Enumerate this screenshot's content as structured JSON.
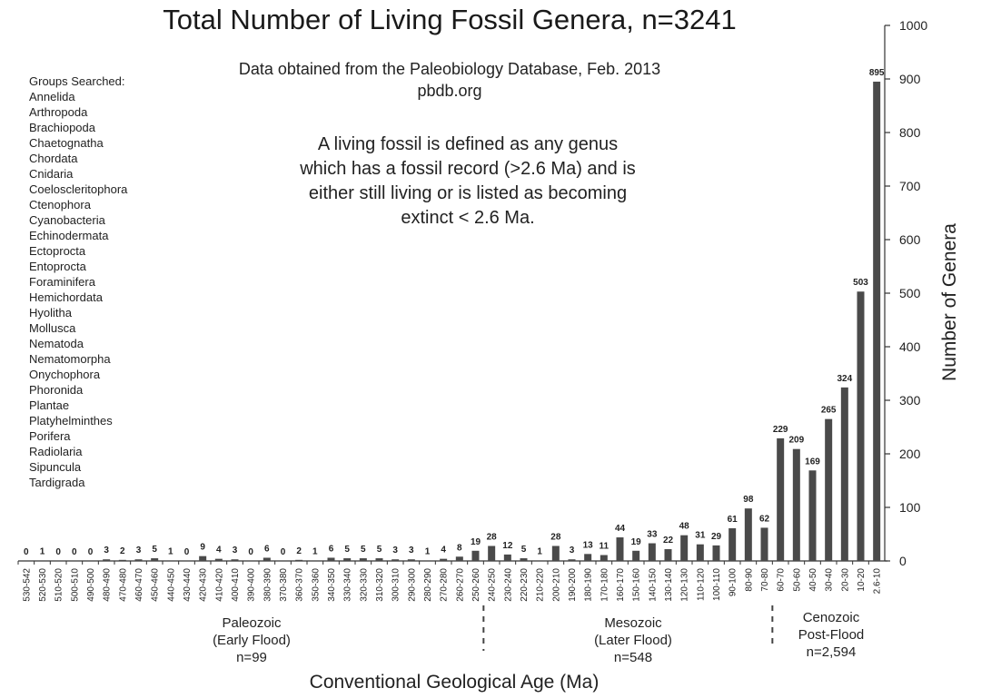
{
  "title": "Total Number of Living Fossil Genera, n=3241",
  "subtitle_lines": [
    "Data obtained from the Paleobiology Database, Feb. 2013",
    "pbdb.org"
  ],
  "definition_lines": [
    "A living fossil is defined as any genus",
    "which has a fossil record (>2.6 Ma) and is",
    "either still living or is listed as becoming",
    "extinct < 2.6 Ma."
  ],
  "groups": {
    "heading": "Groups Searched:",
    "items": [
      "Annelida",
      "Arthropoda",
      "Brachiopoda",
      "Chaetognatha",
      "Chordata",
      "Cnidaria",
      "Coeloscleritophora",
      "Ctenophora",
      "Cyanobacteria",
      "Echinodermata",
      "Ectoprocta",
      "Entoprocta",
      "Foraminifera",
      "Hemichordata",
      "Hyolitha",
      "Mollusca",
      "Nematoda",
      "Nematomorpha",
      "Onychophora",
      "Phoronida",
      "Plantae",
      "Platyhelminthes",
      "Porifera",
      "Radiolaria",
      "Sipuncula",
      "Tardigrada"
    ]
  },
  "eras": [
    {
      "lines": [
        "Paleozoic",
        "(Early Flood)",
        "n=99"
      ]
    },
    {
      "lines": [
        "Mesozoic",
        "(Later Flood)",
        "n=548"
      ]
    },
    {
      "lines": [
        "Cenozoic",
        "Post-Flood",
        "n=2,594"
      ]
    }
  ],
  "chart_data": {
    "type": "bar",
    "title": "Total Number of Living Fossil Genera, n=3241",
    "xlabel": "Conventional Geological Age (Ma)",
    "ylabel": "Number of Genera",
    "ylim": [
      0,
      1000
    ],
    "yticks": [
      0,
      100,
      200,
      300,
      400,
      500,
      600,
      700,
      800,
      900,
      "1000"
    ],
    "y_axis_side": "right",
    "grid": false,
    "bar_color": "#4a4a4a",
    "categories": [
      "530-542",
      "520-530",
      "510-520",
      "500-510",
      "490-500",
      "480-490",
      "470-480",
      "460-470",
      "450-460",
      "440-450",
      "430-440",
      "420-430",
      "410-420",
      "400-410",
      "390-400",
      "380-390",
      "370-380",
      "360-370",
      "350-360",
      "340-350",
      "330-340",
      "320-330",
      "310-320",
      "300-310",
      "290-300",
      "280-290",
      "270-280",
      "260-270",
      "250-260",
      "240-250",
      "230-240",
      "220-230",
      "210-220",
      "200-210",
      "190-200",
      "180-190",
      "170-180",
      "160-170",
      "150-160",
      "140-150",
      "130-140",
      "120-130",
      "110-120",
      "100-110",
      "90-100",
      "80-90",
      "70-80",
      "60-70",
      "50-60",
      "40-50",
      "30-40",
      "20-30",
      "10-20",
      "2.6-10"
    ],
    "values": [
      0,
      1,
      0,
      0,
      0,
      3,
      2,
      3,
      5,
      1,
      0,
      9,
      4,
      3,
      0,
      6,
      0,
      2,
      1,
      6,
      5,
      5,
      5,
      3,
      3,
      1,
      4,
      8,
      19,
      28,
      12,
      5,
      1,
      28,
      3,
      13,
      11,
      44,
      19,
      33,
      22,
      48,
      31,
      29,
      61,
      98,
      62,
      229,
      209,
      169,
      265,
      324,
      503,
      895
    ]
  }
}
